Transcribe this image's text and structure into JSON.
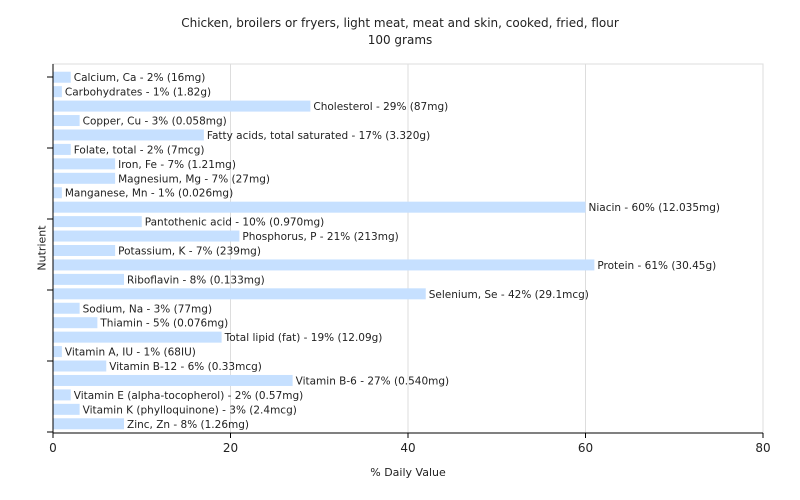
{
  "chart_data": {
    "type": "bar",
    "orientation": "horizontal",
    "title": "Chicken, broilers or fryers, light meat, meat and skin, cooked, fried, flour",
    "subtitle": "100 grams",
    "xlabel": "% Daily Value",
    "ylabel": "Nutrient",
    "xlim": [
      0,
      80
    ],
    "xticks": [
      0,
      20,
      40,
      60,
      80
    ],
    "grid": true,
    "bar_color": "#c6e0ff",
    "categories": [
      "Calcium, Ca",
      "Carbohydrates",
      "Cholesterol",
      "Copper, Cu",
      "Fatty acids, total saturated",
      "Folate, total",
      "Iron, Fe",
      "Magnesium, Mg",
      "Manganese, Mn",
      "Niacin",
      "Pantothenic acid",
      "Phosphorus, P",
      "Potassium, K",
      "Protein",
      "Riboflavin",
      "Selenium, Se",
      "Sodium, Na",
      "Thiamin",
      "Total lipid (fat)",
      "Vitamin A, IU",
      "Vitamin B-12",
      "Vitamin B-6",
      "Vitamin E (alpha-tocopherol)",
      "Vitamin K (phylloquinone)",
      "Zinc, Zn"
    ],
    "values": [
      2,
      1,
      29,
      3,
      17,
      2,
      7,
      7,
      1,
      60,
      10,
      21,
      7,
      61,
      8,
      42,
      3,
      5,
      19,
      1,
      6,
      27,
      2,
      3,
      8
    ],
    "labels": [
      "Calcium, Ca - 2% (16mg)",
      "Carbohydrates - 1% (1.82g)",
      "Cholesterol - 29% (87mg)",
      "Copper, Cu - 3% (0.058mg)",
      "Fatty acids, total saturated - 17% (3.320g)",
      "Folate, total - 2% (7mcg)",
      "Iron, Fe - 7% (1.21mg)",
      "Magnesium, Mg - 7% (27mg)",
      "Manganese, Mn - 1% (0.026mg)",
      "Niacin - 60% (12.035mg)",
      "Pantothenic acid - 10% (0.970mg)",
      "Phosphorus, P - 21% (213mg)",
      "Potassium, K - 7% (239mg)",
      "Protein - 61% (30.45g)",
      "Riboflavin - 8% (0.133mg)",
      "Selenium, Se - 42% (29.1mcg)",
      "Sodium, Na - 3% (77mg)",
      "Thiamin - 5% (0.076mg)",
      "Total lipid (fat) - 19% (12.09g)",
      "Vitamin A, IU - 1% (68IU)",
      "Vitamin B-12 - 6% (0.33mcg)",
      "Vitamin B-6 - 27% (0.540mg)",
      "Vitamin E (alpha-tocopherol) - 2% (0.57mg)",
      "Vitamin K (phylloquinone) - 3% (2.4mcg)",
      "Zinc, Zn - 8% (1.26mg)"
    ]
  }
}
